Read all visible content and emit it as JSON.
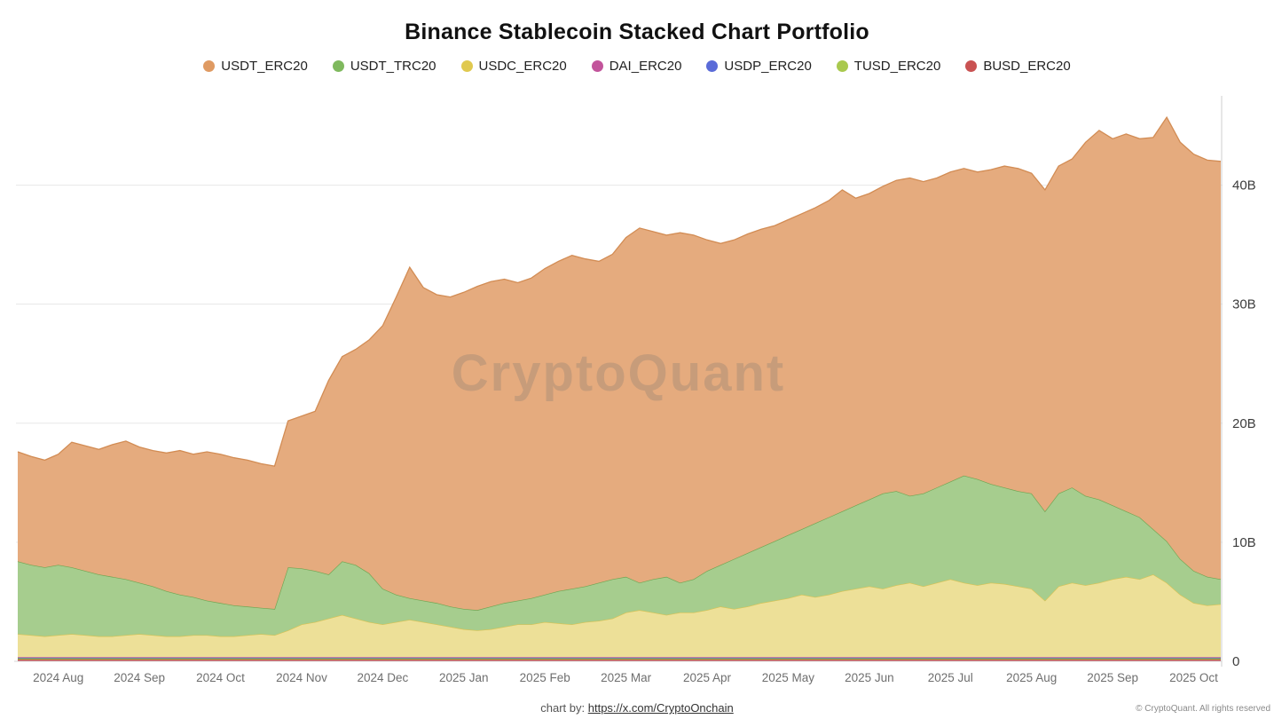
{
  "title": "Binance Stablecoin Stacked Chart Portfolio",
  "watermark": "CryptoQuant",
  "footer": {
    "chart_by_label": "chart by:",
    "chart_by_link": "https://x.com/CryptoOnchain",
    "copyright": "© CryptoQuant. All rights reserved"
  },
  "chart_data": {
    "type": "area",
    "stacked": true,
    "title": "Binance Stablecoin Stacked Chart Portfolio",
    "unit": "billions USD",
    "legend_position": "top",
    "grid": "horizontal",
    "y_axis_side": "right",
    "y_top_value": 47.5,
    "y_ticks": [
      {
        "value": 0,
        "label": "0"
      },
      {
        "value": 10,
        "label": "10B"
      },
      {
        "value": 20,
        "label": "20B"
      },
      {
        "value": 30,
        "label": "30B"
      },
      {
        "value": 40,
        "label": "40B"
      }
    ],
    "x_count": 90,
    "x_month_labels": [
      {
        "label": "2024 Aug",
        "i": 3
      },
      {
        "label": "2024 Sep",
        "i": 9
      },
      {
        "label": "2024 Oct",
        "i": 15
      },
      {
        "label": "2024 Nov",
        "i": 21
      },
      {
        "label": "2024 Dec",
        "i": 27
      },
      {
        "label": "2025 Jan",
        "i": 33
      },
      {
        "label": "2025 Feb",
        "i": 39
      },
      {
        "label": "2025 Mar",
        "i": 45
      },
      {
        "label": "2025 Apr",
        "i": 51
      },
      {
        "label": "2025 May",
        "i": 57
      },
      {
        "label": "2025 Jun",
        "i": 63
      },
      {
        "label": "2025 Jul",
        "i": 69
      },
      {
        "label": "2025 Aug",
        "i": 75
      },
      {
        "label": "2025 Sep",
        "i": 81
      },
      {
        "label": "2025 Oct",
        "i": 87
      }
    ],
    "stack_order": [
      "BUSD_ERC20",
      "TUSD_ERC20",
      "USDP_ERC20",
      "DAI_ERC20",
      "USDC_ERC20",
      "USDT_TRC20",
      "USDT_ERC20"
    ],
    "series": [
      {
        "name": "USDT_ERC20",
        "color": "#DF9A62",
        "fill": "#E5AB7E",
        "stroke": "#D28C54",
        "values": [
          9.2,
          9.1,
          9.0,
          9.3,
          10.5,
          10.5,
          10.5,
          11.1,
          11.6,
          11.4,
          11.4,
          11.6,
          12.1,
          12.0,
          12.5,
          12.5,
          12.4,
          12.3,
          12.1,
          12.0,
          12.3,
          12.8,
          13.4,
          16.3,
          17.2,
          18.1,
          19.6,
          22.1,
          25.0,
          27.8,
          26.3,
          25.9,
          26.0,
          26.6,
          27.2,
          27.3,
          27.2,
          26.7,
          26.9,
          27.4,
          27.7,
          28.0,
          27.5,
          27.0,
          27.3,
          28.5,
          29.8,
          29.2,
          28.7,
          29.4,
          28.9,
          27.8,
          27.0,
          26.8,
          26.8,
          26.7,
          26.5,
          26.5,
          26.5,
          26.5,
          26.6,
          27.0,
          25.8,
          25.7,
          25.8,
          26.1,
          26.7,
          26.2,
          26.0,
          26.0,
          25.8,
          25.8,
          26.4,
          27.0,
          27.1,
          26.9,
          27.0,
          27.5,
          27.6,
          29.7,
          31.0,
          30.8,
          31.7,
          31.8,
          32.9,
          35.6,
          35.0,
          35.0,
          35.0,
          35.1
        ]
      },
      {
        "name": "USDT_TRC20",
        "color": "#7FB95E",
        "fill": "#A6CD8E",
        "stroke": "#6FA552",
        "values": [
          6.1,
          5.9,
          5.8,
          5.9,
          5.6,
          5.4,
          5.2,
          5.0,
          4.7,
          4.3,
          4.1,
          3.8,
          3.5,
          3.2,
          2.9,
          2.8,
          2.6,
          2.4,
          2.2,
          2.2,
          5.3,
          4.7,
          4.3,
          3.7,
          4.5,
          4.5,
          4.1,
          3.0,
          2.3,
          1.8,
          1.8,
          1.8,
          1.7,
          1.7,
          1.7,
          1.9,
          2.0,
          2.0,
          2.2,
          2.3,
          2.7,
          3.0,
          3.0,
          3.2,
          3.3,
          3.0,
          2.3,
          2.8,
          3.2,
          2.5,
          2.8,
          3.3,
          3.5,
          4.2,
          4.5,
          4.7,
          5.0,
          5.3,
          5.5,
          6.2,
          6.5,
          6.7,
          7.0,
          7.3,
          8.0,
          7.9,
          7.3,
          7.8,
          8.0,
          8.2,
          9.0,
          8.9,
          8.3,
          8.1,
          8.0,
          8.0,
          7.5,
          7.8,
          8.0,
          7.5,
          7.0,
          6.2,
          5.5,
          5.2,
          3.8,
          3.5,
          3.0,
          2.7,
          2.4,
          2.1
        ]
      },
      {
        "name": "USDC_ERC20",
        "color": "#E0C94F",
        "fill": "#EDE098",
        "stroke": "#D8C254",
        "values": [
          1.95,
          1.85,
          1.75,
          1.85,
          1.95,
          1.85,
          1.75,
          1.75,
          1.85,
          1.95,
          1.85,
          1.75,
          1.75,
          1.85,
          1.85,
          1.75,
          1.75,
          1.85,
          1.95,
          1.85,
          2.25,
          2.75,
          2.95,
          3.25,
          3.55,
          3.25,
          2.95,
          2.75,
          2.95,
          3.15,
          2.95,
          2.75,
          2.55,
          2.35,
          2.25,
          2.35,
          2.55,
          2.75,
          2.75,
          2.95,
          2.85,
          2.75,
          2.95,
          3.05,
          3.25,
          3.75,
          3.95,
          3.75,
          3.55,
          3.75,
          3.75,
          3.95,
          4.25,
          4.05,
          4.25,
          4.55,
          4.75,
          4.95,
          5.25,
          5.05,
          5.25,
          5.55,
          5.75,
          5.95,
          5.75,
          6.05,
          6.25,
          5.95,
          6.25,
          6.55,
          6.25,
          6.05,
          6.25,
          6.15,
          5.95,
          5.75,
          4.75,
          5.95,
          6.25,
          6.05,
          6.25,
          6.55,
          6.75,
          6.55,
          6.95,
          6.25,
          5.25,
          4.55,
          4.35,
          4.45
        ]
      },
      {
        "name": "DAI_ERC20",
        "color": "#C2549B",
        "fill": "#C2549B",
        "stroke": "#A841833",
        "values": 0.05
      },
      {
        "name": "USDP_ERC20",
        "color": "#5A6BD8",
        "fill": "#5A6BD8",
        "stroke": "#4A59C0",
        "values": 0.05
      },
      {
        "name": "TUSD_ERC20",
        "color": "#A9C94E",
        "fill": "#A9C94E",
        "stroke": "#93B23C",
        "values": 0.1
      },
      {
        "name": "BUSD_ERC20",
        "color": "#C95252",
        "fill": "#C95252",
        "stroke": "#B04040",
        "values": 0.15
      }
    ]
  }
}
